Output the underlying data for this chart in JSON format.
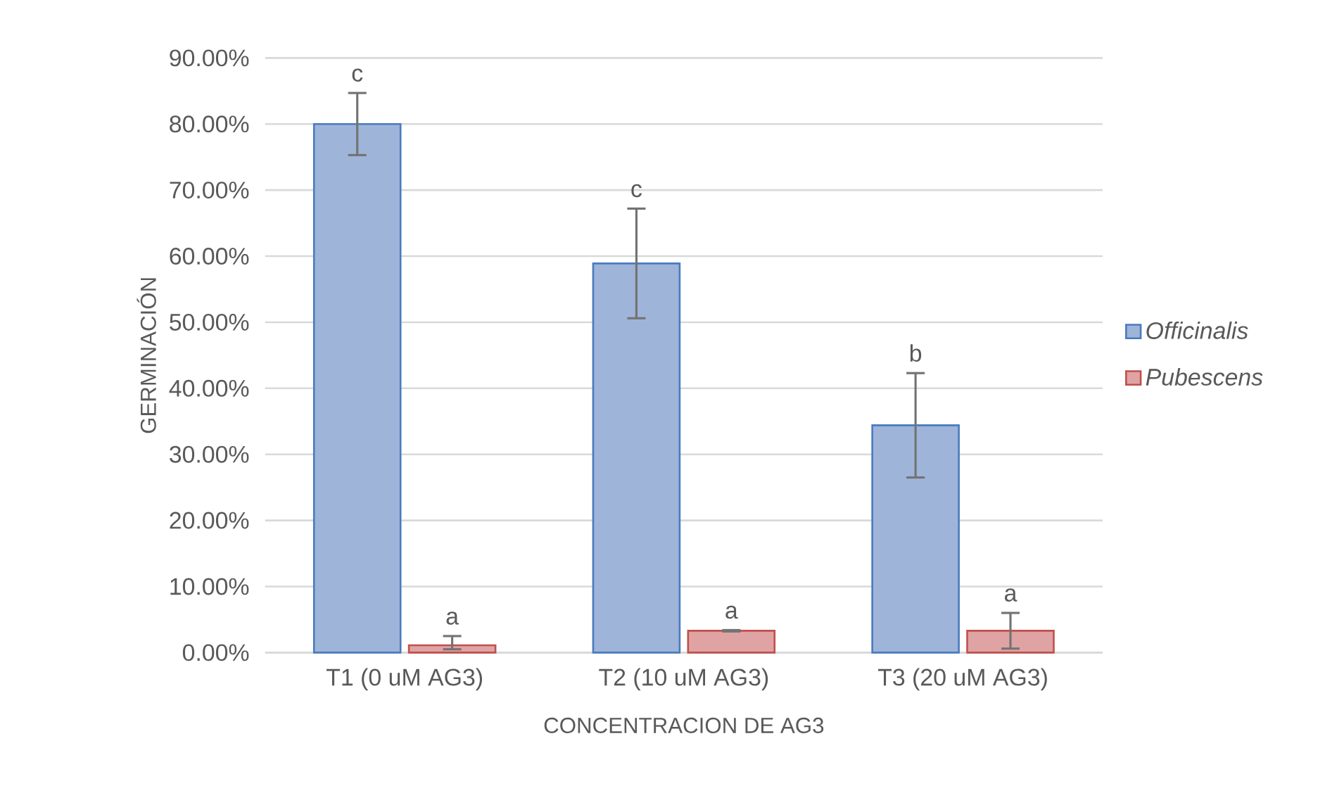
{
  "chart_data": {
    "type": "bar",
    "xlabel": "CONCENTRACION DE AG3",
    "ylabel": "GERMINACIÓN",
    "categories": [
      "T1 (0 uM AG3)",
      "T2 (10 uM AG3)",
      "T3 (20 uM AG3)"
    ],
    "series": [
      {
        "name": "Officinalis",
        "color": "#9fb4d9",
        "values": [
          80,
          58.9,
          34.4
        ],
        "errors": [
          4.7,
          8.3,
          7.9
        ]
      },
      {
        "name": "Pubescens",
        "color": "#e0a3a3",
        "values": [
          1.1,
          3.3,
          3.3
        ],
        "errors": [
          [
            0.5,
            2.5
          ],
          0.1,
          2.7
        ]
      }
    ],
    "ylim": [
      0,
      90
    ],
    "yticks": [
      {
        "value": 0,
        "label": "0.00%"
      },
      {
        "value": 10,
        "label": "10.00%"
      },
      {
        "value": 20,
        "label": "20.00%"
      },
      {
        "value": 30,
        "label": "30.00%"
      },
      {
        "value": 40,
        "label": "40.00%"
      },
      {
        "value": 50,
        "label": "50.00%"
      },
      {
        "value": 60,
        "label": "60.00%"
      },
      {
        "value": 70,
        "label": "70.00%"
      },
      {
        "value": 80,
        "label": "80.00%"
      },
      {
        "value": 90,
        "label": "90.00%"
      }
    ],
    "grid": "y",
    "legend": "right",
    "annotations": [
      "c",
      "a",
      "c",
      "a",
      "b",
      "a"
    ]
  }
}
